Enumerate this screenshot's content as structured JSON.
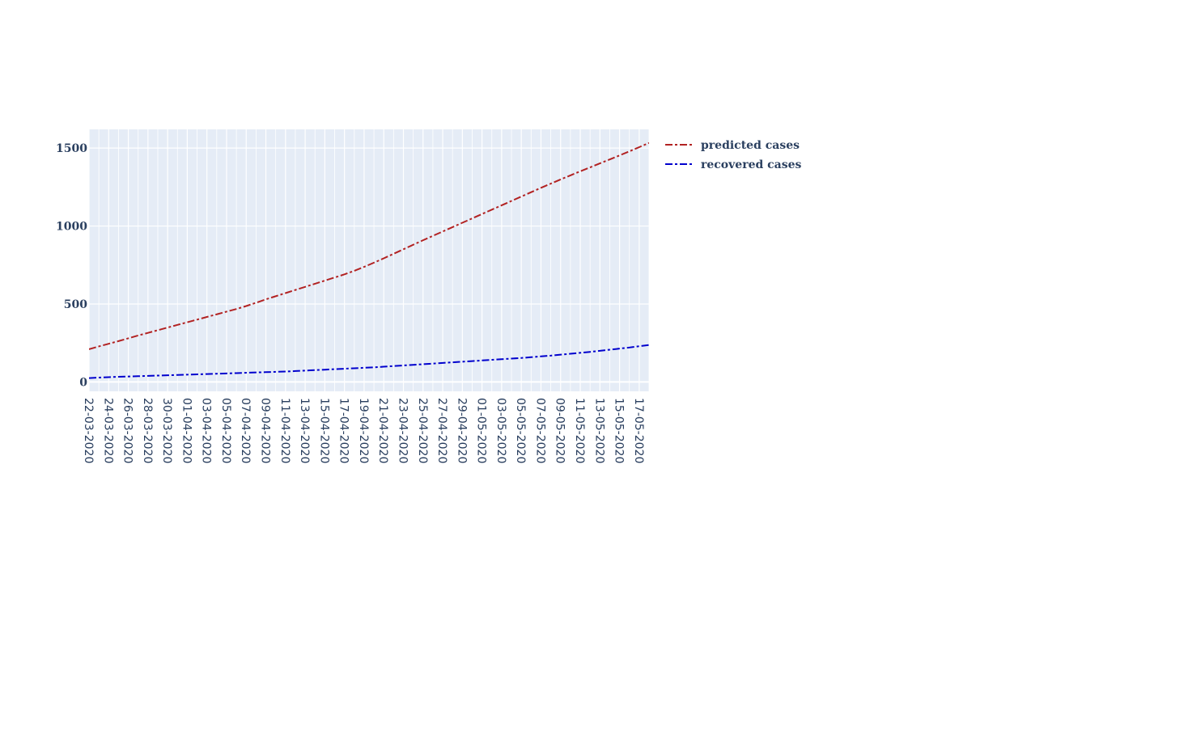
{
  "chart_data": {
    "type": "line",
    "title": "",
    "xlabel": "",
    "ylabel": "",
    "x": [
      "22-03-2020",
      "23-03-2020",
      "24-03-2020",
      "25-03-2020",
      "26-03-2020",
      "27-03-2020",
      "28-03-2020",
      "29-03-2020",
      "30-03-2020",
      "31-03-2020",
      "01-04-2020",
      "02-04-2020",
      "03-04-2020",
      "04-04-2020",
      "05-04-2020",
      "06-04-2020",
      "07-04-2020",
      "08-04-2020",
      "09-04-2020",
      "10-04-2020",
      "11-04-2020",
      "12-04-2020",
      "13-04-2020",
      "14-04-2020",
      "15-04-2020",
      "16-04-2020",
      "17-04-2020",
      "18-04-2020",
      "19-04-2020",
      "20-04-2020",
      "21-04-2020",
      "22-04-2020",
      "23-04-2020",
      "24-04-2020",
      "25-04-2020",
      "26-04-2020",
      "27-04-2020",
      "28-04-2020",
      "29-04-2020",
      "30-04-2020",
      "01-05-2020",
      "02-05-2020",
      "03-05-2020",
      "04-05-2020",
      "05-05-2020",
      "06-05-2020",
      "07-05-2020",
      "08-05-2020",
      "09-05-2020",
      "10-05-2020",
      "11-05-2020",
      "12-05-2020",
      "13-05-2020",
      "14-05-2020",
      "15-05-2020",
      "16-05-2020",
      "17-05-2020",
      "18-05-2020"
    ],
    "xtick_labels": [
      "22-03-2020",
      "24-03-2020",
      "26-03-2020",
      "28-03-2020",
      "30-03-2020",
      "01-04-2020",
      "03-04-2020",
      "05-04-2020",
      "07-04-2020",
      "09-04-2020",
      "11-04-2020",
      "13-04-2020",
      "15-04-2020",
      "17-04-2020",
      "19-04-2020",
      "21-04-2020",
      "23-04-2020",
      "25-04-2020",
      "27-04-2020",
      "29-04-2020",
      "01-05-2020",
      "03-05-2020",
      "05-05-2020",
      "07-05-2020",
      "09-05-2020",
      "11-05-2020",
      "13-05-2020",
      "15-05-2020",
      "17-05-2020"
    ],
    "yticks": [
      0,
      500,
      1000,
      1500
    ],
    "ylim": [
      -60,
      1620
    ],
    "grid": true,
    "legend_position": "top-right-outside",
    "series": [
      {
        "name": "predicted cases",
        "color": "#b22222",
        "dash": "dashdot",
        "values": [
          210,
          228,
          245,
          262,
          280,
          298,
          315,
          332,
          349,
          366,
          383,
          400,
          417,
          434,
          451,
          468,
          487,
          508,
          530,
          550,
          570,
          590,
          610,
          630,
          650,
          670,
          690,
          713,
          738,
          765,
          793,
          822,
          851,
          880,
          909,
          937,
          965,
          993,
          1021,
          1049,
          1077,
          1105,
          1133,
          1161,
          1189,
          1217,
          1245,
          1272,
          1299,
          1325,
          1351,
          1376,
          1402,
          1427,
          1453,
          1479,
          1506,
          1533
        ]
      },
      {
        "name": "recovered cases",
        "color": "#0000cd",
        "dash": "dashdot",
        "values": [
          25,
          28,
          31,
          33,
          35,
          37,
          39,
          41,
          43,
          45,
          47,
          49,
          51,
          53,
          55,
          57,
          59,
          61,
          63,
          65,
          67,
          70,
          73,
          76,
          79,
          82,
          85,
          88,
          91,
          94,
          98,
          102,
          106,
          110,
          114,
          118,
          122,
          126,
          130,
          134,
          138,
          142,
          146,
          150,
          154,
          159,
          164,
          169,
          175,
          181,
          187,
          193,
          200,
          207,
          214,
          221,
          229,
          237
        ]
      }
    ]
  },
  "colors": {
    "plot_background": "#e5ecf6",
    "grid": "#ffffff",
    "text": "#2a3f5f"
  }
}
